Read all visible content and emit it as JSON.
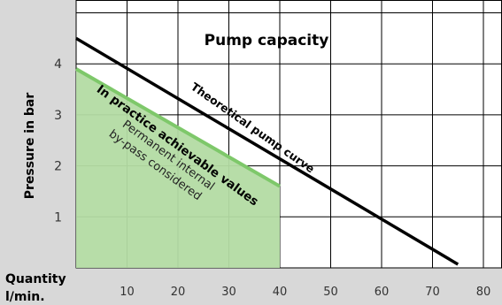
{
  "chart_data": {
    "type": "line",
    "title": "Pump capacity",
    "xlabel": "Quantity\nl/min.",
    "ylabel": "Pressure in bar",
    "x_ticks": [
      10,
      20,
      30,
      40,
      50,
      60,
      70,
      80
    ],
    "y_ticks": [
      1,
      2,
      3,
      4
    ],
    "xlim": [
      0,
      85
    ],
    "ylim": [
      0,
      5
    ],
    "grid": true,
    "series": [
      {
        "name": "Theoretical pump curve",
        "color": "#000000",
        "x": [
          0,
          75
        ],
        "y": [
          4.5,
          0.07
        ]
      },
      {
        "name": "In practice achievable values",
        "color": "#7ec86a",
        "fill": "#b3dba3",
        "x": [
          0,
          40
        ],
        "y": [
          3.9,
          1.6
        ]
      }
    ],
    "annotations": [
      "Permanent internal",
      "by-pass considered"
    ],
    "colors": {
      "background": "#ffffff",
      "axis_band": "#d8d8d8",
      "grid": "#000000",
      "area_fill": "#b3dba3",
      "area_line": "#7ec86a"
    }
  }
}
